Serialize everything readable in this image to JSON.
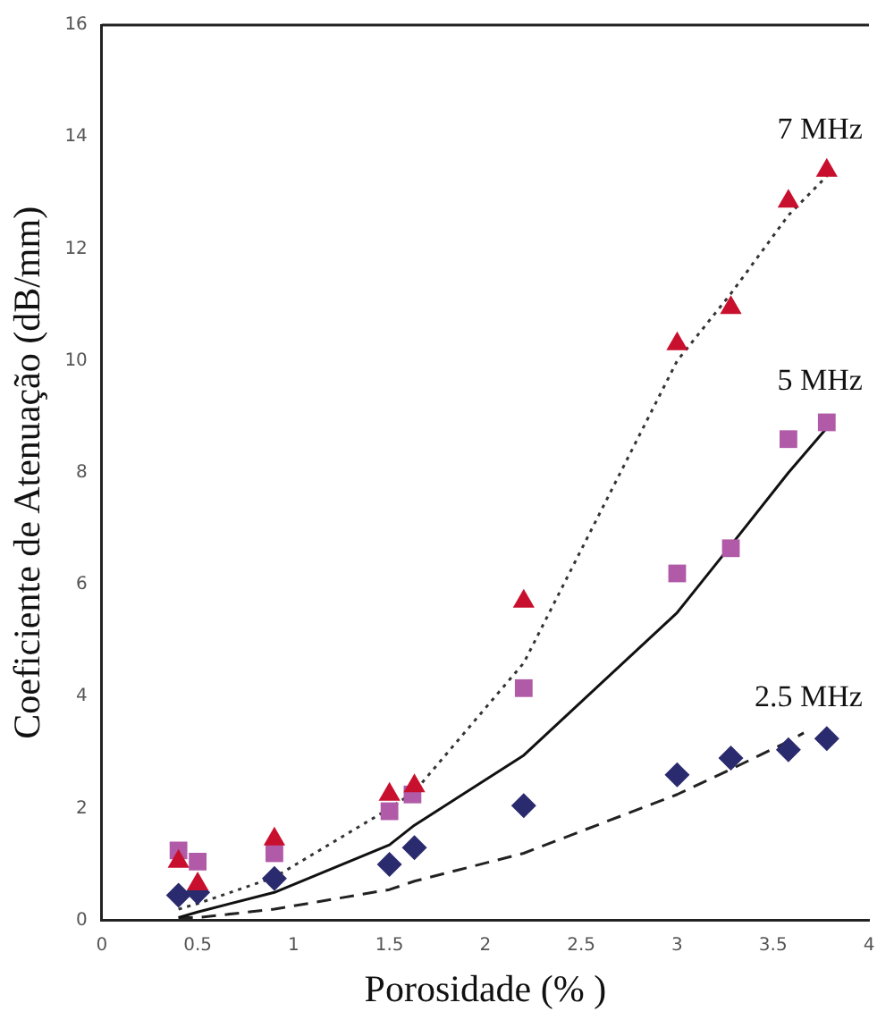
{
  "chart_data": {
    "type": "scatter",
    "xlabel": "Porosidade (% )",
    "ylabel": "Coeficiente de Atenuação (dB/mm)",
    "xlim": [
      0,
      4
    ],
    "xticks": [
      0,
      0.5,
      1,
      1.5,
      2,
      2.5,
      3,
      3.5,
      4
    ],
    "ylim": [
      0,
      16
    ],
    "yticks": [
      0,
      2,
      4,
      6,
      8,
      10,
      12,
      14,
      16
    ],
    "grid": false,
    "legend": false,
    "series": [
      {
        "name": "7 MHz",
        "color": "#c8102e",
        "marker": "triangle",
        "x": [
          0.4,
          0.5,
          0.9,
          1.5,
          1.63,
          2.2,
          3.0,
          3.28,
          3.58,
          3.78
        ],
        "values": [
          1.05,
          0.65,
          1.45,
          2.25,
          2.4,
          5.7,
          10.3,
          10.95,
          12.85,
          13.4
        ]
      },
      {
        "name": "5 MHz",
        "color": "#b05aa8",
        "marker": "square",
        "x": [
          0.4,
          0.5,
          0.9,
          1.5,
          1.62,
          2.2,
          3.0,
          3.28,
          3.58,
          3.78
        ],
        "values": [
          1.25,
          1.05,
          1.2,
          1.95,
          2.25,
          4.15,
          6.2,
          6.65,
          8.6,
          8.9
        ]
      },
      {
        "name": "2.5 MHz",
        "color": "#2a2a6e",
        "marker": "diamond",
        "x": [
          0.4,
          0.5,
          0.9,
          1.5,
          1.63,
          2.2,
          3.0,
          3.28,
          3.58,
          3.78
        ],
        "values": [
          0.45,
          0.5,
          0.75,
          1.0,
          1.3,
          2.05,
          2.6,
          2.9,
          3.05,
          3.25
        ]
      },
      {
        "type": "line",
        "color": "#333333",
        "line_style": "dotted",
        "marker": "none",
        "x": [
          0.4,
          0.5,
          0.9,
          1.5,
          1.63,
          2.2,
          3.0,
          3.28,
          3.58,
          3.78
        ],
        "values": [
          0.2,
          0.3,
          0.77,
          2.0,
          2.3,
          4.6,
          10.0,
          11.2,
          12.6,
          13.3
        ]
      },
      {
        "type": "line",
        "color": "#111111",
        "line_style": "solid",
        "marker": "none",
        "x": [
          0.4,
          0.5,
          0.9,
          1.5,
          1.63,
          2.2,
          3.0,
          3.28,
          3.58,
          3.78
        ],
        "values": [
          0.05,
          0.15,
          0.5,
          1.35,
          1.7,
          2.95,
          5.5,
          6.7,
          8.0,
          8.8
        ]
      },
      {
        "type": "line",
        "color": "#222222",
        "line_style": "dashed",
        "marker": "none",
        "x": [
          0.4,
          0.5,
          0.9,
          1.5,
          1.63,
          2.2,
          3.0,
          3.28,
          3.58,
          3.66
        ],
        "values": [
          0.05,
          0.05,
          0.2,
          0.55,
          0.7,
          1.2,
          2.25,
          2.7,
          3.2,
          3.35
        ]
      }
    ]
  }
}
